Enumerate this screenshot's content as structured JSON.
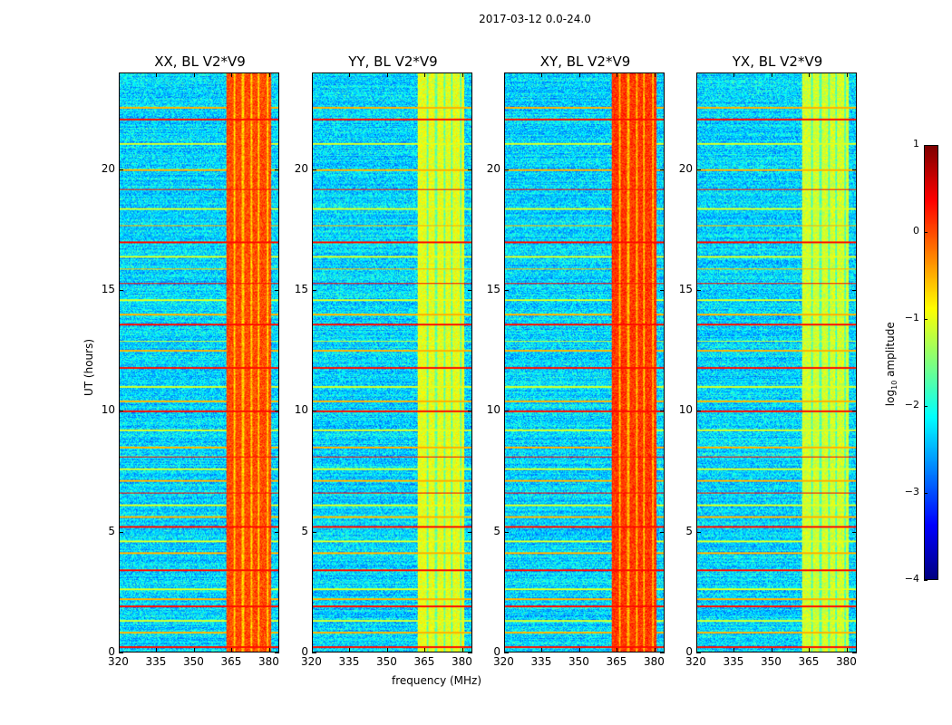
{
  "chart_data": {
    "type": "heatmap",
    "title": "2017-03-12 0.0-24.0",
    "xlabel": "frequency (MHz)",
    "ylabel": "UT (hours)",
    "xlim": [
      320,
      384
    ],
    "ylim": [
      0,
      24
    ],
    "xticks": [
      "320",
      "335",
      "350",
      "365",
      "380"
    ],
    "xtick_values": [
      320,
      335,
      350,
      365,
      380
    ],
    "yticks": [
      "0",
      "5",
      "10",
      "15",
      "20"
    ],
    "ytick_values": [
      0,
      5,
      10,
      15,
      20
    ],
    "panels": [
      {
        "title": "XX, BL V2*V9",
        "band_start": 363,
        "band_level": 0.0
      },
      {
        "title": "YY, BL V2*V9",
        "band_start": 362,
        "band_level": -1.0
      },
      {
        "title": "XY, BL V2*V9",
        "band_start": 363,
        "band_level": 0.1
      },
      {
        "title": "YX, BL V2*V9",
        "band_start": 362,
        "band_level": -1.1
      }
    ],
    "band_end": 381,
    "background_level": -2.3,
    "rfi_hours": [
      0.2,
      0.8,
      1.3,
      1.9,
      2.2,
      2.6,
      3.4,
      4.1,
      4.6,
      5.2,
      5.6,
      6.1,
      6.6,
      7.1,
      7.6,
      8.1,
      8.5,
      9.2,
      10.0,
      10.4,
      11.0,
      11.8,
      12.5,
      12.9,
      13.6,
      14.0,
      14.6,
      15.3,
      15.9,
      16.4,
      17.0,
      17.7,
      18.4,
      19.2,
      20.0,
      21.1,
      22.1,
      22.6
    ],
    "colorbar": {
      "label": "log10 amplitude",
      "label_main": "log",
      "label_sub": "10",
      "label_rest": " amplitude",
      "range": [
        -4,
        1
      ],
      "ticks": [
        "1",
        "0",
        "−1",
        "−2",
        "−3",
        "−4"
      ],
      "tick_values": [
        1,
        0,
        -1,
        -2,
        -3,
        -4
      ],
      "colormap": "jet"
    }
  }
}
